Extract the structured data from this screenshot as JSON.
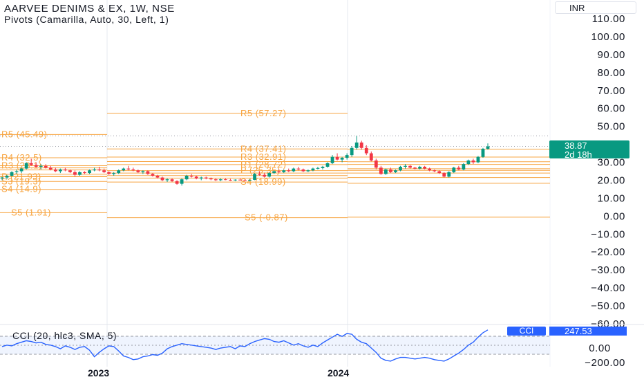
{
  "header": {
    "title": "AARVEE DENIMS & EX, 1W, NSE",
    "indicator": "Pivots (Camarilla, Auto, 30, Left, 1)"
  },
  "currency": "INR",
  "last_price": {
    "value": "38.87",
    "countdown": "2d 18h"
  },
  "cci": {
    "title": "CCI (20, hlc3, SMA, 5)",
    "tag": "CCI",
    "value": "247.53"
  },
  "colors": {
    "up": "#089981",
    "down": "#f23645",
    "pivot": "#f7a440",
    "cci_line": "#2962ff"
  },
  "chart_data": {
    "type": "candlestick",
    "y_axis_ticks": [
      "110.00",
      "100.00",
      "90.00",
      "80.00",
      "70.00",
      "60.00",
      "50.00",
      "40.00",
      "30.00",
      "20.00",
      "10.00",
      "0.00",
      "−10.00",
      "−20.00",
      "−30.00",
      "−40.00",
      "−50.00",
      "−60.00"
    ],
    "cci_axis_ticks": [
      "0.00",
      "−200.00"
    ],
    "x_ticks": [
      "2023",
      "2024"
    ],
    "pivot_periods": [
      {
        "levels": [
          {
            "name": "R5",
            "value": 45.49,
            "label": "R5 (45.49)"
          },
          {
            "name": "R4",
            "value": 32.5,
            "label": "R4 (32.5)"
          },
          {
            "name": "R3",
            "value": 28.1,
            "label": "R3 (28.1)"
          },
          {
            "name": "R2",
            "value": 26.9
          },
          {
            "name": "R1",
            "value": 25.7
          },
          {
            "name": "P",
            "value": 21.93,
            "label": "P (21.93)"
          },
          {
            "name": "S1",
            "value": 23.3
          },
          {
            "name": "S2",
            "value": 22.1
          },
          {
            "name": "S3",
            "value": 19.3,
            "label": "S3 (19.3)"
          },
          {
            "name": "S4",
            "value": 14.9,
            "label": "S4 (14.9)"
          },
          {
            "name": "S5",
            "value": 1.91,
            "label": "S5 (1.91)"
          }
        ]
      },
      {
        "levels": [
          {
            "name": "R5",
            "value": 57.27,
            "label": "R5 (57.27)"
          },
          {
            "name": "R4",
            "value": 37.41,
            "label": "R4 (37.41)"
          },
          {
            "name": "R3",
            "value": 32.91,
            "label": "R3 (32.91)"
          },
          {
            "name": "R2",
            "value": 30.4
          },
          {
            "name": "R1",
            "value": 28.7,
            "label": "R1 (28.72)"
          },
          {
            "name": "P",
            "value": 25.35,
            "label": "P (25.35)"
          },
          {
            "name": "S1",
            "value": 24.0
          },
          {
            "name": "S2",
            "value": 22.6
          },
          {
            "name": "S3",
            "value": 21.2
          },
          {
            "name": "S4",
            "value": 18.99,
            "label": "S4 (18.99)"
          },
          {
            "name": "S5",
            "value": -0.87,
            "label": "S5 (-0.87)"
          }
        ]
      },
      {
        "levels": [
          {
            "name": "R4",
            "value": 37.3
          },
          {
            "name": "R3",
            "value": 32.9
          },
          {
            "name": "R2",
            "value": 30.3
          },
          {
            "name": "R1",
            "value": 28.8
          },
          {
            "name": "P",
            "value": 26.4
          },
          {
            "name": "S1",
            "value": 25.5
          },
          {
            "name": "S2",
            "value": 24.0
          },
          {
            "name": "S3",
            "value": 21.5
          },
          {
            "name": "S4",
            "value": 18.3
          },
          {
            "name": "S5",
            "value": -0.6
          }
        ]
      }
    ],
    "dotted_levels": [
      44.7,
      38.87
    ],
    "candles": [
      [
        21,
        22,
        20,
        21.5
      ],
      [
        21.5,
        23,
        20.5,
        22.5
      ],
      [
        22.5,
        25,
        22,
        24.5
      ],
      [
        24.5,
        26,
        23.5,
        25
      ],
      [
        25,
        27,
        24,
        26.5
      ],
      [
        26.5,
        30,
        26,
        29.5
      ],
      [
        29.5,
        32,
        28,
        28.5
      ],
      [
        28.5,
        30,
        27,
        27.5
      ],
      [
        27.5,
        29,
        26,
        28
      ],
      [
        28,
        29,
        26.5,
        27
      ],
      [
        27,
        28,
        25.5,
        26
      ],
      [
        26,
        27,
        24.5,
        25
      ],
      [
        25,
        26.5,
        24,
        26
      ],
      [
        26,
        27,
        25,
        25.5
      ],
      [
        25.5,
        26,
        24,
        24.5
      ],
      [
        24.5,
        25.5,
        22,
        23
      ],
      [
        23,
        25,
        22.5,
        24.5
      ],
      [
        24.5,
        25,
        23.5,
        24
      ],
      [
        24,
        26,
        23.5,
        25.5
      ],
      [
        25.5,
        27,
        25,
        26
      ],
      [
        26,
        27.5,
        25,
        25.5
      ],
      [
        25.5,
        26.5,
        24,
        24.5
      ],
      [
        24.5,
        25,
        23,
        23.5
      ],
      [
        23.5,
        24.5,
        22.5,
        24
      ],
      [
        24,
        26,
        23.5,
        25.5
      ],
      [
        25.5,
        27,
        25,
        26.5
      ],
      [
        26.5,
        28,
        25.5,
        26
      ],
      [
        26,
        27,
        25,
        25.5
      ],
      [
        25.5,
        26,
        24,
        24.5
      ],
      [
        24.5,
        25.5,
        23.5,
        25
      ],
      [
        25,
        25.5,
        23,
        23.5
      ],
      [
        23.5,
        24,
        22,
        22.5
      ],
      [
        22.5,
        23,
        21,
        21.5
      ],
      [
        21.5,
        22,
        19.5,
        20
      ],
      [
        20,
        21,
        19,
        20.5
      ],
      [
        20.5,
        21,
        19,
        19.5
      ],
      [
        19.5,
        20,
        17.5,
        18
      ],
      [
        18,
        21,
        17,
        20.5
      ],
      [
        20.5,
        23,
        20,
        22.5
      ],
      [
        22.5,
        23.5,
        21.5,
        22
      ],
      [
        22,
        22.5,
        20.5,
        21
      ],
      [
        21,
        22,
        20,
        21.5
      ],
      [
        21.5,
        22,
        20.5,
        21
      ],
      [
        21,
        21.5,
        20,
        20.5
      ],
      [
        20.5,
        21,
        19.5,
        20
      ],
      [
        20,
        21,
        19.5,
        20.5
      ],
      [
        20.5,
        21,
        20,
        20.2
      ],
      [
        20.2,
        20.8,
        19.6,
        20
      ],
      [
        20,
        20.5,
        19.5,
        20.3
      ],
      [
        20.3,
        21,
        19.8,
        20
      ],
      [
        20,
        20.6,
        19.4,
        19.8
      ],
      [
        19.8,
        20.5,
        19.3,
        20.2
      ],
      [
        20.2,
        24,
        20,
        23.5
      ],
      [
        23.5,
        25,
        22.5,
        23
      ],
      [
        23,
        24,
        21.5,
        22
      ],
      [
        22,
        24.5,
        21.5,
        24
      ],
      [
        24,
        25.5,
        23.5,
        25
      ],
      [
        25,
        26,
        24,
        24.5
      ],
      [
        24.5,
        26,
        24,
        25.5
      ],
      [
        25.5,
        26.5,
        24.5,
        25
      ],
      [
        25,
        27,
        24.5,
        26.5
      ],
      [
        26.5,
        27.5,
        25.5,
        26
      ],
      [
        26,
        26.5,
        24.5,
        25
      ],
      [
        25,
        26,
        24.5,
        25.5
      ],
      [
        25.5,
        27,
        25,
        26.5
      ],
      [
        26.5,
        27.5,
        26,
        26.8
      ],
      [
        26.8,
        28,
        26,
        27.5
      ],
      [
        27.5,
        30,
        27,
        29.5
      ],
      [
        29.5,
        34,
        29,
        33
      ],
      [
        33,
        35,
        31,
        31.5
      ],
      [
        31.5,
        33,
        30,
        32.5
      ],
      [
        32.5,
        35,
        31.5,
        34
      ],
      [
        34,
        39,
        33,
        38
      ],
      [
        38,
        44.7,
        37,
        41
      ],
      [
        41,
        42,
        37,
        38
      ],
      [
        38,
        39.5,
        34,
        35
      ],
      [
        35,
        36,
        30.5,
        31
      ],
      [
        31,
        32,
        26,
        27
      ],
      [
        27,
        28,
        23,
        23.5
      ],
      [
        23.5,
        26.5,
        23,
        26
      ],
      [
        26,
        27,
        24,
        24.5
      ],
      [
        24.5,
        26,
        24,
        25.5
      ],
      [
        25.5,
        28,
        25,
        27.5
      ],
      [
        27.5,
        29,
        26.5,
        28
      ],
      [
        28,
        28.5,
        26.5,
        27
      ],
      [
        27,
        27.5,
        26,
        26.5
      ],
      [
        26.5,
        28,
        26,
        27.5
      ],
      [
        27.5,
        28,
        26,
        26.5
      ],
      [
        26.5,
        27,
        25,
        25.5
      ],
      [
        25.5,
        26,
        24.5,
        25
      ],
      [
        25,
        25.5,
        23.5,
        24
      ],
      [
        24,
        24.5,
        21.5,
        22
      ],
      [
        22,
        25,
        21.5,
        24.5
      ],
      [
        24.5,
        27.5,
        24,
        27
      ],
      [
        27,
        28,
        25.5,
        26
      ],
      [
        26,
        29.5,
        25.5,
        29
      ],
      [
        29,
        31.5,
        28.5,
        31
      ],
      [
        31,
        32,
        29,
        30
      ],
      [
        30,
        33.5,
        29.5,
        33
      ],
      [
        33,
        38,
        32.5,
        37.5
      ],
      [
        37.5,
        40.5,
        37,
        38.87
      ]
    ],
    "cci_values": [
      20,
      40,
      30,
      60,
      80,
      100,
      90,
      70,
      80,
      50,
      40,
      20,
      -10,
      30,
      10,
      -20,
      10,
      20,
      -30,
      -120,
      -60,
      -10,
      30,
      20,
      -40,
      -110,
      -130,
      -160,
      -150,
      -120,
      -110,
      -90,
      -100,
      -70,
      -10,
      20,
      40,
      60,
      50,
      40,
      30,
      20,
      10,
      0,
      -20,
      0,
      10,
      20,
      -10,
      30,
      20,
      60,
      90,
      110,
      130,
      120,
      90,
      80,
      100,
      70,
      40,
      60,
      30,
      10,
      40,
      20,
      70,
      110,
      150,
      190,
      160,
      200,
      190,
      120,
      80,
      60,
      0,
      -60,
      -140,
      -170,
      -180,
      -150,
      -130,
      -130,
      -140,
      -150,
      -140,
      -130,
      -140,
      -160,
      -170,
      -180,
      -150,
      -110,
      -70,
      -20,
      40,
      80,
      150,
      210,
      250
    ]
  }
}
